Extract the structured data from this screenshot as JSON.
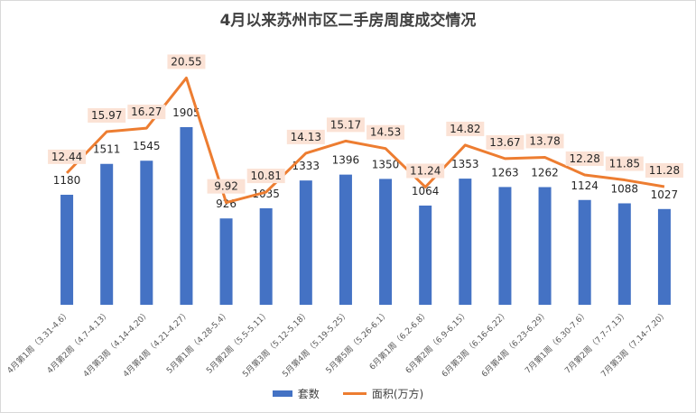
{
  "chart_data": {
    "type": "bar+line",
    "title": "4月以来苏州市区二手房周度成交情况",
    "categories": [
      "4月第1周（3.31-4.6）",
      "4月第2周（4.7-4.13）",
      "4月第3周（4.14-4.20）",
      "4月第4周（4.21-4.27）",
      "5月第1周（4.28-5.4）",
      "5月第2周（5.5-5.11）",
      "5月第3周（5.12-5.18）",
      "5月第4周（5.19-5.25）",
      "5月第5周（5.26-6.1）",
      "6月第1周（6.2-6.8）",
      "6月第2周（6.9-6.15）",
      "6月第3周（6.16-6.22）",
      "6月第4周（6.23-6.29）",
      "7月第1周（6.30-7.6）",
      "7月第2周（7.7-7.13）",
      "7月第3周（7.14-7.20）"
    ],
    "series": [
      {
        "name": "套数",
        "type": "bar",
        "color": "#4472c4",
        "values": [
          1180,
          1511,
          1545,
          1905,
          926,
          1035,
          1333,
          1396,
          1350,
          1064,
          1353,
          1263,
          1262,
          1124,
          1088,
          1027
        ],
        "labels": [
          "1180",
          "1511",
          "1545",
          "1905",
          "926",
          "1035",
          "1333",
          "1396",
          "1350",
          "1064",
          "1353",
          "1263",
          "1262",
          "1124",
          "1088",
          "1027"
        ]
      },
      {
        "name": "面积(万方)",
        "type": "line",
        "color": "#ed7d31",
        "values": [
          12.44,
          15.97,
          16.27,
          20.55,
          9.92,
          10.81,
          14.13,
          15.17,
          14.53,
          11.24,
          14.82,
          13.67,
          13.78,
          12.28,
          11.85,
          11.28
        ],
        "labels": [
          "12.44",
          "15.97",
          "16.27",
          "20.55",
          "9.92",
          "10.81",
          "14.13",
          "15.17",
          "14.53",
          "11.24",
          "14.82",
          "13.67",
          "13.78",
          "12.28",
          "11.85",
          "11.28"
        ]
      }
    ],
    "bar_axis_range": [
      0,
      2500
    ],
    "line_axis_range": [
      -15,
      25
    ],
    "axes_visible": false,
    "grid": false,
    "legend_position": "bottom"
  }
}
